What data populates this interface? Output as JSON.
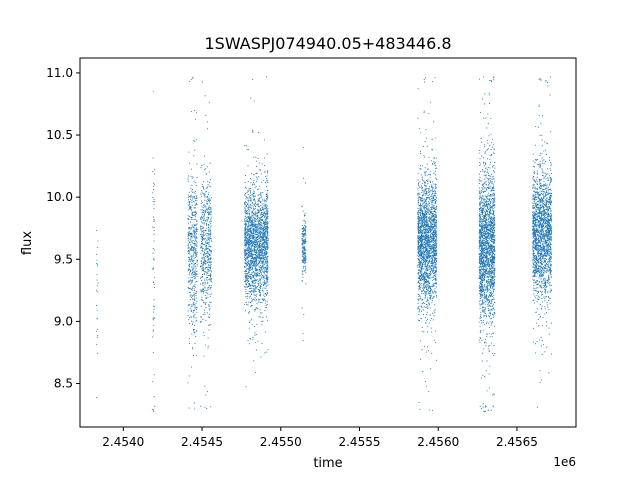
{
  "chart_data": {
    "type": "scatter",
    "title": "1SWASPJ074940.05+483446.8",
    "xlabel": "time",
    "ylabel": "flux",
    "x_offset_label": "1e6",
    "xlim": [
      2453725,
      2456875
    ],
    "ylim": [
      8.15,
      11.12
    ],
    "x_ticks": [
      2454000,
      2454500,
      2455000,
      2455500,
      2456000,
      2456500
    ],
    "x_tick_labels": [
      "2.4540",
      "2.4545",
      "2.4550",
      "2.4555",
      "2.4560",
      "2.4565"
    ],
    "y_ticks": [
      8.5,
      9.0,
      9.5,
      10.0,
      10.5,
      11.0
    ],
    "y_tick_labels": [
      "8.5",
      "9.0",
      "9.5",
      "10.0",
      "10.5",
      "11.0"
    ],
    "grid": false,
    "legend": "none",
    "marker_color": "#1f77b4",
    "observing_seasons": [
      {
        "t_start": 2453828,
        "t_end": 2453840,
        "flux_center": 9.3,
        "flux_spread": 0.35,
        "points": 25
      },
      {
        "t_start": 2454186,
        "t_end": 2454200,
        "flux_center": 9.4,
        "flux_spread": 0.55,
        "points": 60
      },
      {
        "t_start": 2454410,
        "t_end": 2454470,
        "flux_center": 9.55,
        "flux_spread": 0.3,
        "points": 500
      },
      {
        "t_start": 2454490,
        "t_end": 2454560,
        "flux_center": 9.6,
        "flux_spread": 0.28,
        "points": 550
      },
      {
        "t_start": 2454770,
        "t_end": 2454920,
        "flux_center": 9.62,
        "flux_spread": 0.22,
        "points": 2000
      },
      {
        "t_start": 2455135,
        "t_end": 2455160,
        "flux_center": 9.6,
        "flux_spread": 0.12,
        "points": 200
      },
      {
        "t_start": 2455870,
        "t_end": 2455990,
        "flux_center": 9.65,
        "flux_spread": 0.25,
        "points": 2000
      },
      {
        "t_start": 2456260,
        "t_end": 2456360,
        "flux_center": 9.6,
        "flux_spread": 0.3,
        "points": 2000
      },
      {
        "t_start": 2456600,
        "t_end": 2456720,
        "flux_center": 9.7,
        "flux_spread": 0.25,
        "points": 1800
      }
    ]
  }
}
